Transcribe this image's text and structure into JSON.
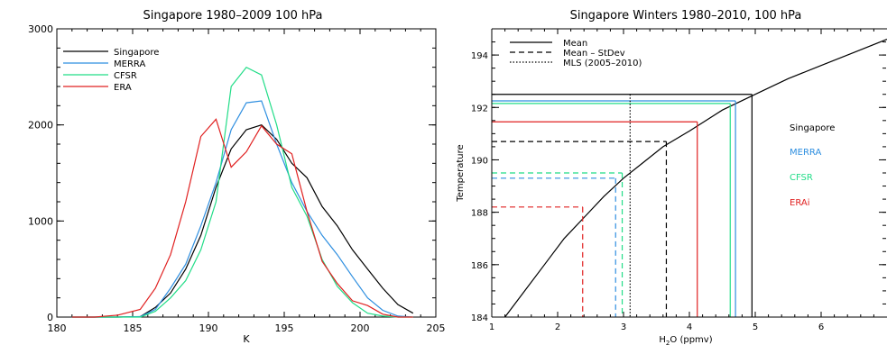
{
  "chart_data": [
    {
      "type": "line",
      "title": "Singapore 1980–2009 100 hPa",
      "xlabel": "K",
      "ylabel": "",
      "xlim": [
        180,
        205
      ],
      "ylim": [
        0,
        3000
      ],
      "xticks": [
        "180",
        "185",
        "190",
        "195",
        "200",
        "205"
      ],
      "yticks": [
        "0",
        "1000",
        "2000",
        "3000"
      ],
      "legend_position": "top-left",
      "grid": false,
      "series": [
        {
          "name": "Singapore",
          "color": "#000000",
          "x": [
            181,
            182.5,
            184,
            185.5,
            186.5,
            187.5,
            188.5,
            189.5,
            190.5,
            191.5,
            192.5,
            193.5,
            194.5,
            195.5,
            196.5,
            197.5,
            198.5,
            199.5,
            200.5,
            201.5,
            202.5,
            203.5
          ],
          "y": [
            0,
            0,
            0,
            5,
            100,
            250,
            500,
            850,
            1350,
            1750,
            1950,
            2000,
            1850,
            1600,
            1450,
            1150,
            950,
            700,
            500,
            300,
            130,
            40
          ]
        },
        {
          "name": "MERRA",
          "color": "#2f8fe0",
          "x": [
            181,
            182.5,
            184,
            185.5,
            186.5,
            187.5,
            188.5,
            189.5,
            190.5,
            191.5,
            192.5,
            193.5,
            194.5,
            195.5,
            196.5,
            197.5,
            198.5,
            199.5,
            200.5,
            201.5,
            202.5,
            203.5
          ],
          "y": [
            0,
            0,
            0,
            5,
            80,
            300,
            550,
            950,
            1400,
            1950,
            2230,
            2250,
            1800,
            1400,
            1100,
            850,
            650,
            420,
            200,
            70,
            10,
            0
          ]
        },
        {
          "name": "CFSR",
          "color": "#22dd88",
          "x": [
            181,
            182.5,
            184,
            185.5,
            186.5,
            187.5,
            188.5,
            189.5,
            190.5,
            191.5,
            192.5,
            193.5,
            194.5,
            195.5,
            196.5,
            197.5,
            198.5,
            199.5,
            200.5,
            201.5,
            202.5,
            203.5
          ],
          "y": [
            0,
            0,
            0,
            0,
            60,
            200,
            380,
            700,
            1200,
            2400,
            2600,
            2520,
            2000,
            1350,
            1050,
            600,
            320,
            150,
            40,
            10,
            0,
            0
          ]
        },
        {
          "name": "ERA",
          "color": "#e02020",
          "x": [
            181,
            182.5,
            184,
            185.5,
            186.5,
            187.5,
            188.5,
            189.5,
            190.5,
            191.5,
            192.5,
            193.5,
            194.5,
            195.5,
            196.5,
            197.5,
            198.5,
            199.5,
            200.5,
            201.5,
            202.5,
            203.5
          ],
          "y": [
            0,
            0,
            20,
            80,
            300,
            650,
            1200,
            1880,
            2060,
            1560,
            1720,
            1990,
            1800,
            1700,
            1100,
            580,
            350,
            170,
            120,
            30,
            0,
            0
          ]
        }
      ],
      "legend": [
        "Singapore",
        "MERRA",
        "CFSR",
        "ERA"
      ]
    },
    {
      "type": "line",
      "title": "Singapore Winters 1980–2010, 100 hPa",
      "xlabel_main": "H",
      "xlabel_sub": "2",
      "xlabel_rest": "O (ppmv)",
      "ylabel": "Temperature",
      "xlim": [
        1,
        7
      ],
      "ylim": [
        184,
        195
      ],
      "xticks": [
        "1",
        "2",
        "3",
        "4",
        "5",
        "6"
      ],
      "yticks": [
        "184",
        "186",
        "188",
        "190",
        "192",
        "194"
      ],
      "grid": false,
      "legend": [
        {
          "label": "Mean",
          "style": "solid"
        },
        {
          "label": "Mean – StDev",
          "style": "dashed"
        },
        {
          "label": "MLS (2005–2010)",
          "style": "dotted"
        }
      ],
      "legend_position": "top-left",
      "annotations": [
        {
          "text": "Singapore",
          "color": "#000000"
        },
        {
          "text": "MERRA",
          "color": "#2f8fe0"
        },
        {
          "text": "CFSR",
          "color": "#22dd88"
        },
        {
          "text": "ERAi",
          "color": "#e02020"
        }
      ],
      "saturation_curve": {
        "x": [
          1.2,
          1.5,
          1.8,
          2.1,
          2.4,
          2.7,
          3.0,
          3.3,
          3.6,
          4.0,
          4.5,
          5.0,
          5.5,
          6.0,
          6.5,
          7.0
        ],
        "y": [
          184,
          185,
          186,
          187,
          187.8,
          188.6,
          189.3,
          189.9,
          190.5,
          191.1,
          191.9,
          192.5,
          193.1,
          193.6,
          194.1,
          194.6
        ]
      },
      "mls_h2o": 3.1,
      "mean_lines": [
        {
          "name": "Singapore",
          "color": "#000000",
          "t": 192.5,
          "h2o": 4.95
        },
        {
          "name": "MERRA",
          "color": "#2f8fe0",
          "t": 192.25,
          "h2o": 4.7
        },
        {
          "name": "CFSR",
          "color": "#22dd88",
          "t": 192.15,
          "h2o": 4.62
        },
        {
          "name": "ERAi",
          "color": "#e02020",
          "t": 191.45,
          "h2o": 4.12
        }
      ],
      "stdev_lines": [
        {
          "name": "Singapore",
          "color": "#000000",
          "t": 190.7,
          "h2o": 3.65
        },
        {
          "name": "CFSR",
          "color": "#22dd88",
          "t": 189.5,
          "h2o": 2.98
        },
        {
          "name": "MERRA",
          "color": "#2f8fe0",
          "t": 189.3,
          "h2o": 2.88
        },
        {
          "name": "ERAi",
          "color": "#e02020",
          "t": 188.2,
          "h2o": 2.38
        }
      ]
    }
  ]
}
